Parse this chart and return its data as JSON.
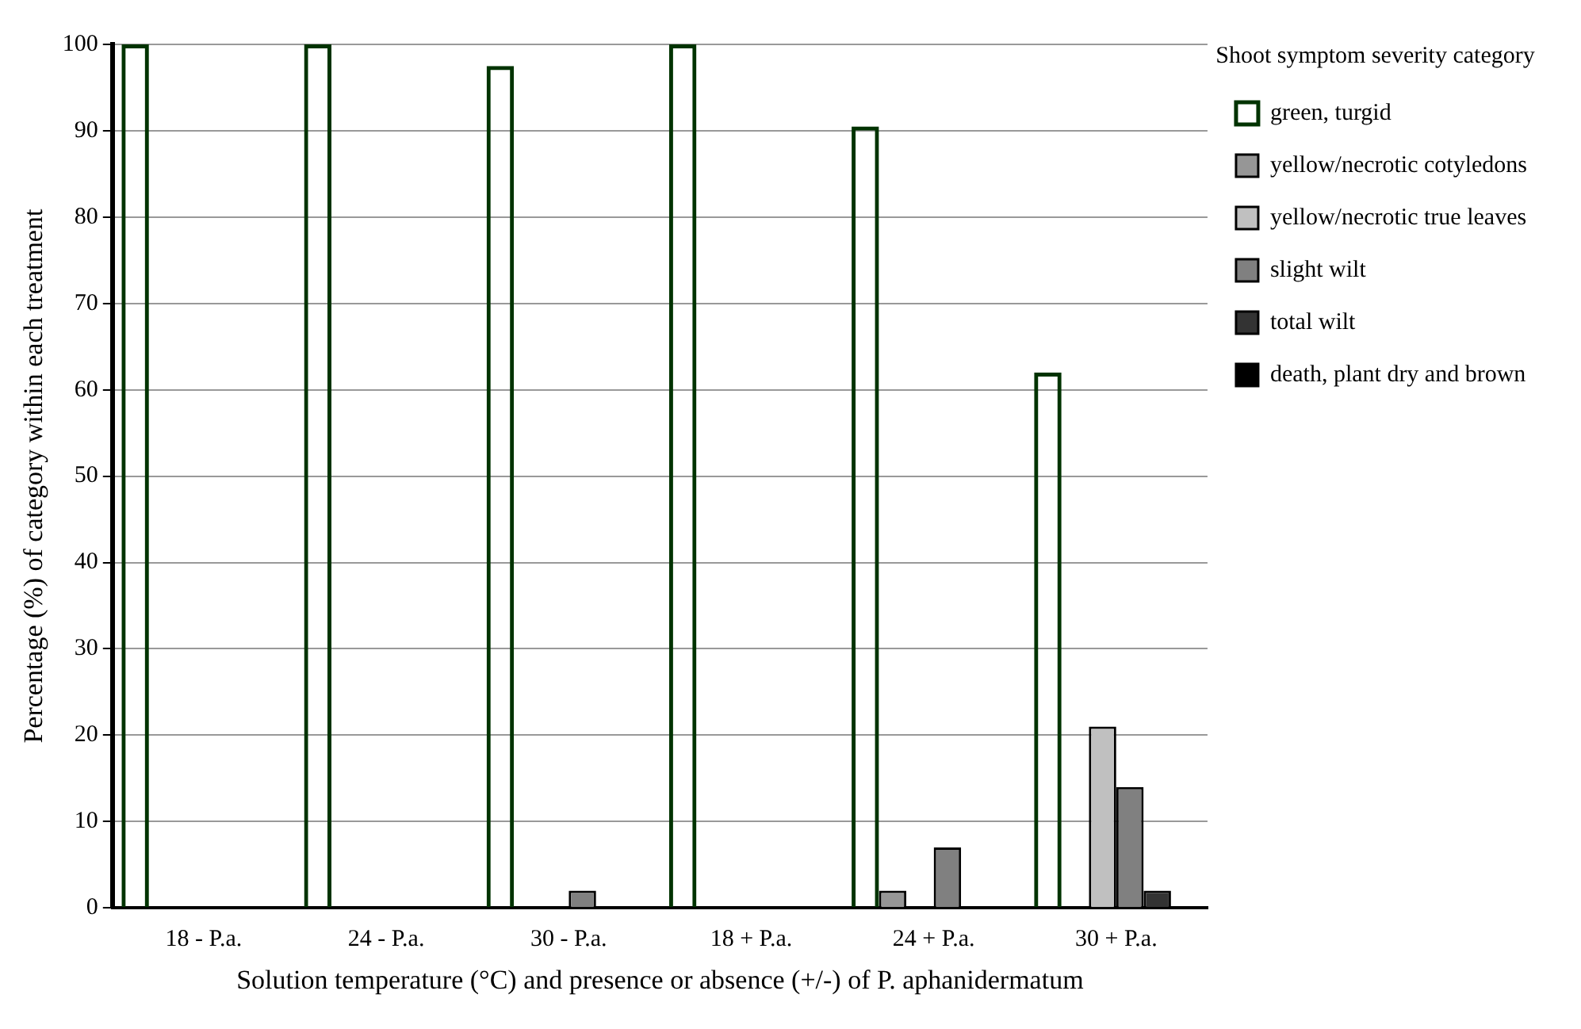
{
  "chart_data": {
    "type": "bar",
    "xlabel": "Solution temperature (°C) and presence or absence (+/-) of P. aphanidermatum",
    "ylabel": "Percentage (%) of category within each treatment",
    "legend_title": "Shoot symptom severity category",
    "categories": [
      "18 - P.a.",
      "24 - P.a.",
      "30 - P.a.",
      "18 + P.a.",
      "24 + P.a.",
      "30 + P.a."
    ],
    "series": [
      {
        "name": "green, turgid",
        "color": "#003300",
        "values": [
          100,
          100,
          97.5,
          100,
          90.5,
          62
        ]
      },
      {
        "name": "yellow/necrotic cotyledons",
        "color": "#969696",
        "values": [
          0,
          0,
          0,
          0,
          2,
          0
        ]
      },
      {
        "name": "yellow/necrotic true leaves",
        "color": "#c0c0c0",
        "values": [
          0,
          0,
          0,
          0,
          0,
          21
        ]
      },
      {
        "name": "slight wilt",
        "color": "#808080",
        "values": [
          0,
          0,
          2,
          0,
          7,
          14
        ]
      },
      {
        "name": "total wilt",
        "color": "#333333",
        "values": [
          0,
          0,
          0,
          0,
          0,
          2
        ]
      },
      {
        "name": "death, plant dry and brown",
        "color": "#000000",
        "values": [
          0,
          0,
          0,
          0,
          0,
          0
        ]
      }
    ],
    "ylim": [
      0,
      100
    ],
    "yticks": [
      0,
      10,
      20,
      30,
      40,
      50,
      60,
      70,
      80,
      90,
      100
    ],
    "grid": "y",
    "legend": "right"
  }
}
